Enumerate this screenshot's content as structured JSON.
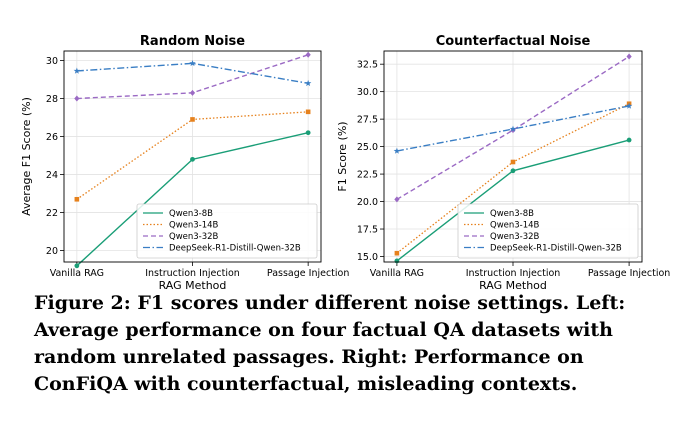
{
  "caption": "Figure 2: F1 scores under different noise settings. Left: Average performance on four factual QA datasets with random unrelated passages. Right: Performance on ConFiQA with counterfactual, misleading contexts.",
  "chart_data": [
    {
      "type": "line",
      "title": "Random Noise",
      "xlabel": "RAG Method",
      "ylabel": "Average F1 Score (%)",
      "categories": [
        "Vanilla RAG",
        "Instruction Injection",
        "Passage Injection"
      ],
      "ylim": [
        19.4,
        30.5
      ],
      "yticks": [
        20,
        22,
        24,
        26,
        28,
        30
      ],
      "ytick_labels": [
        "20",
        "22",
        "24",
        "26",
        "28",
        "30"
      ],
      "grid": true,
      "legend_position": "bottom-right",
      "series": [
        {
          "name": "Qwen3-8B",
          "values": [
            19.2,
            24.8,
            26.2
          ],
          "color": "#1a9e77",
          "dash": "solid",
          "marker": "circle"
        },
        {
          "name": "Qwen3-14B",
          "values": [
            22.7,
            26.9,
            27.3
          ],
          "color": "#e6811c",
          "dash": "dotted",
          "marker": "square"
        },
        {
          "name": "Qwen3-32B",
          "values": [
            28.0,
            28.3,
            30.3
          ],
          "color": "#9b6ac4",
          "dash": "dashed",
          "marker": "diamond"
        },
        {
          "name": "DeepSeek-R1-Distill-Qwen-32B",
          "values": [
            29.45,
            29.85,
            28.8
          ],
          "color": "#3a7ec4",
          "dash": "dashdot",
          "marker": "star"
        }
      ]
    },
    {
      "type": "line",
      "title": "Counterfactual Noise",
      "xlabel": "RAG Method",
      "ylabel": "F1 Score (%)",
      "categories": [
        "Vanilla RAG",
        "Instruction Injection",
        "Passage Injection"
      ],
      "ylim": [
        14.5,
        33.7
      ],
      "yticks": [
        15,
        17.5,
        20,
        22.5,
        25,
        27.5,
        30,
        32.5
      ],
      "ytick_labels": [
        "15.0",
        "17.5",
        "20.0",
        "22.5",
        "25.0",
        "27.5",
        "30.0",
        "32.5"
      ],
      "grid": true,
      "legend_position": "bottom-right",
      "series": [
        {
          "name": "Qwen3-8B",
          "values": [
            14.6,
            22.8,
            25.6
          ],
          "color": "#1a9e77",
          "dash": "solid",
          "marker": "circle"
        },
        {
          "name": "Qwen3-14B",
          "values": [
            15.3,
            23.6,
            28.9
          ],
          "color": "#e6811c",
          "dash": "dotted",
          "marker": "square"
        },
        {
          "name": "Qwen3-32B",
          "values": [
            20.2,
            26.5,
            33.2
          ],
          "color": "#9b6ac4",
          "dash": "dashed",
          "marker": "diamond"
        },
        {
          "name": "DeepSeek-R1-Distill-Qwen-32B",
          "values": [
            24.6,
            26.6,
            28.7
          ],
          "color": "#3a7ec4",
          "dash": "dashdot",
          "marker": "star"
        }
      ]
    }
  ]
}
